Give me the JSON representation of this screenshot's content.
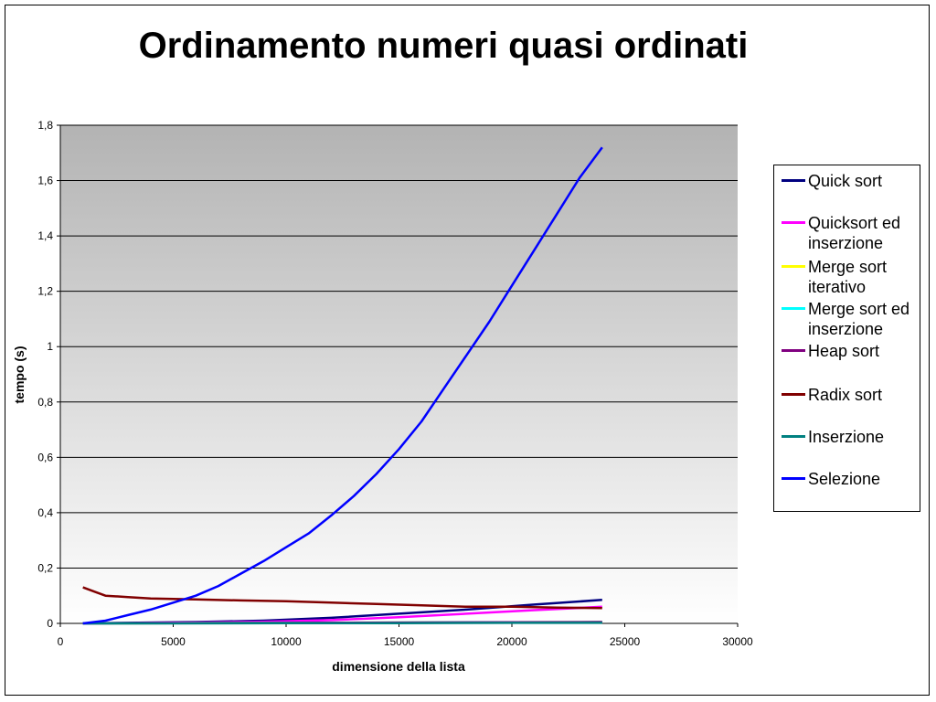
{
  "chart_data": {
    "type": "line",
    "title": "Ordinamento numeri quasi ordinati",
    "xlabel": "dimensione della lista",
    "ylabel": "tempo (s)",
    "xlim": [
      0,
      30000
    ],
    "ylim": [
      0,
      1.8
    ],
    "x_ticks": [
      "0",
      "5000",
      "10000",
      "15000",
      "20000",
      "25000",
      "30000"
    ],
    "y_ticks": [
      "0",
      "0,2",
      "0,4",
      "0,6",
      "0,8",
      "1",
      "1,2",
      "1,4",
      "1,6",
      "1,8"
    ],
    "grid": true,
    "legend_position": "right",
    "series": [
      {
        "name": "Quick sort",
        "color": "#000080",
        "x": [
          1000,
          3000,
          6000,
          9000,
          12000,
          15000,
          18000,
          21000,
          24000
        ],
        "y": [
          0.0,
          0.002,
          0.005,
          0.01,
          0.02,
          0.035,
          0.05,
          0.068,
          0.085
        ]
      },
      {
        "name": "Quicksort ed inserzione",
        "color": "#ff00ff",
        "x": [
          1000,
          3000,
          6000,
          9000,
          12000,
          15000,
          18000,
          21000,
          24000
        ],
        "y": [
          0.0,
          0.001,
          0.003,
          0.006,
          0.012,
          0.022,
          0.035,
          0.048,
          0.06
        ]
      },
      {
        "name": "Merge sort iterativo",
        "color": "#ffff00",
        "x": [
          1000,
          5000,
          10000,
          15000,
          20000,
          24000
        ],
        "y": [
          0.0,
          0.001,
          0.002,
          0.003,
          0.004,
          0.005
        ]
      },
      {
        "name": "Merge sort ed inserzione",
        "color": "#00ffff",
        "x": [
          1000,
          5000,
          10000,
          15000,
          20000,
          24000
        ],
        "y": [
          0.0,
          0.001,
          0.002,
          0.003,
          0.004,
          0.005
        ]
      },
      {
        "name": "Heap sort",
        "color": "#800080",
        "x": [
          1000,
          5000,
          10000,
          15000,
          20000,
          24000
        ],
        "y": [
          0.0,
          0.001,
          0.002,
          0.003,
          0.004,
          0.005
        ]
      },
      {
        "name": "Radix sort",
        "color": "#800000",
        "x": [
          1000,
          1500,
          2000,
          3000,
          4000,
          6000,
          8000,
          10000,
          12000,
          14000,
          16000,
          18000,
          20000,
          22000,
          24000
        ],
        "y": [
          0.13,
          0.115,
          0.1,
          0.095,
          0.09,
          0.087,
          0.083,
          0.08,
          0.075,
          0.07,
          0.065,
          0.06,
          0.06,
          0.057,
          0.055
        ]
      },
      {
        "name": "Inserzione",
        "color": "#008080",
        "x": [
          1000,
          5000,
          10000,
          15000,
          20000,
          24000
        ],
        "y": [
          0.0,
          0.0,
          0.001,
          0.001,
          0.002,
          0.002
        ]
      },
      {
        "name": "Selezione",
        "color": "#0000ff",
        "x": [
          1000,
          2000,
          3000,
          4000,
          5000,
          6000,
          7000,
          8000,
          9000,
          10000,
          11000,
          12000,
          13000,
          14000,
          15000,
          16000,
          17000,
          18000,
          19000,
          20000,
          21000,
          22000,
          23000,
          24000
        ],
        "y": [
          0.0,
          0.01,
          0.03,
          0.05,
          0.075,
          0.1,
          0.135,
          0.18,
          0.225,
          0.275,
          0.325,
          0.39,
          0.46,
          0.54,
          0.63,
          0.73,
          0.85,
          0.97,
          1.09,
          1.22,
          1.35,
          1.48,
          1.61,
          1.72
        ]
      }
    ]
  }
}
